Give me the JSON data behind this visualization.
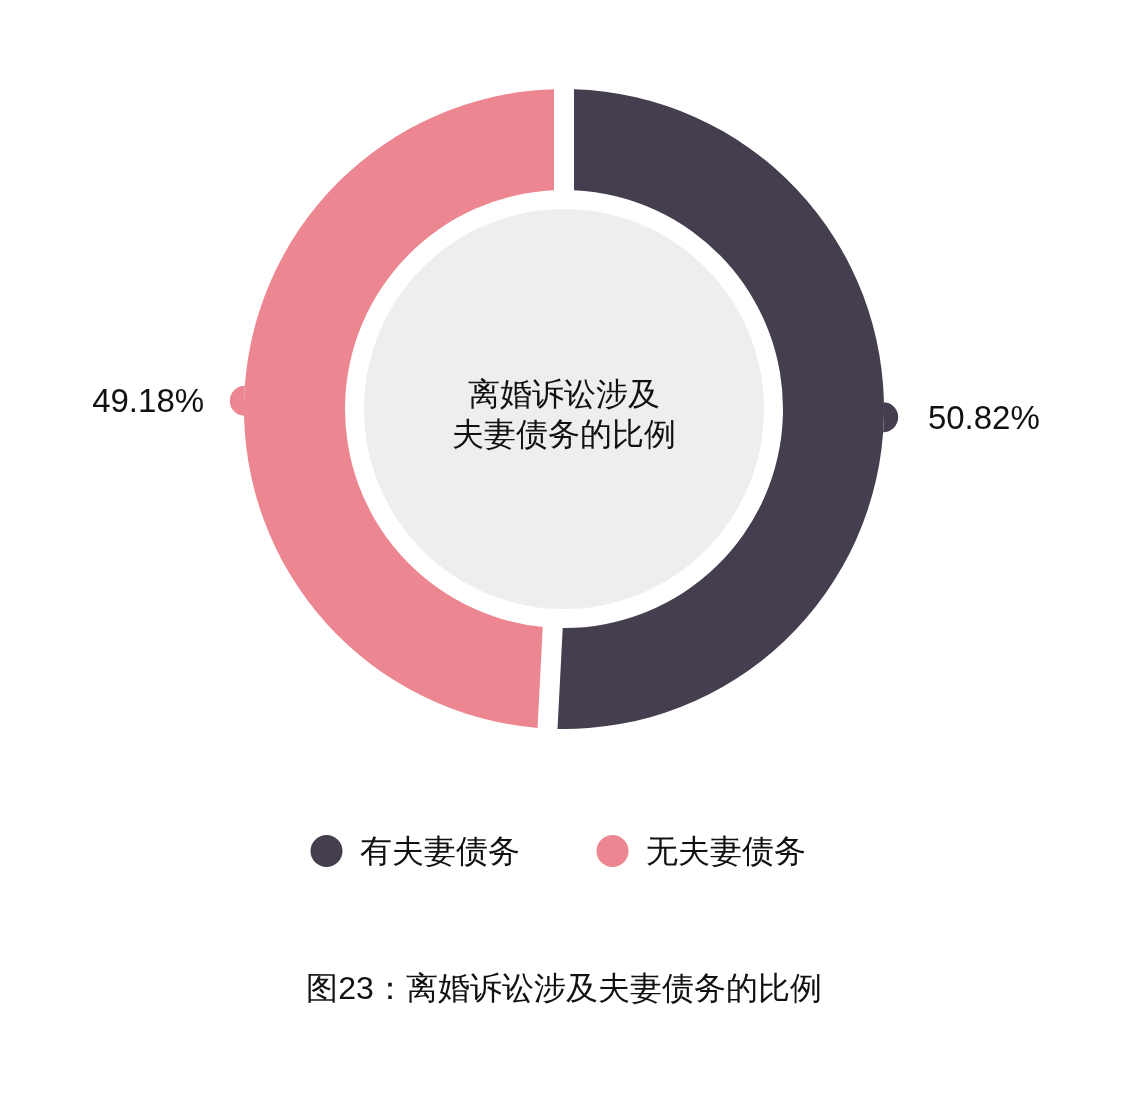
{
  "chart_data": {
    "type": "donut",
    "title": "离婚诉讼涉及夫妻债务的比例",
    "categories": [
      "有夫妻债务",
      "无夫妻债务"
    ],
    "values": [
      50.82,
      49.18
    ],
    "colors": [
      "#453e4f",
      "#ec8690"
    ],
    "value_labels": [
      "50.82%",
      "49.18%"
    ],
    "legend": "bottom",
    "annotations": [
      "图23：离婚诉讼涉及夫妻债务的比例"
    ]
  }
}
